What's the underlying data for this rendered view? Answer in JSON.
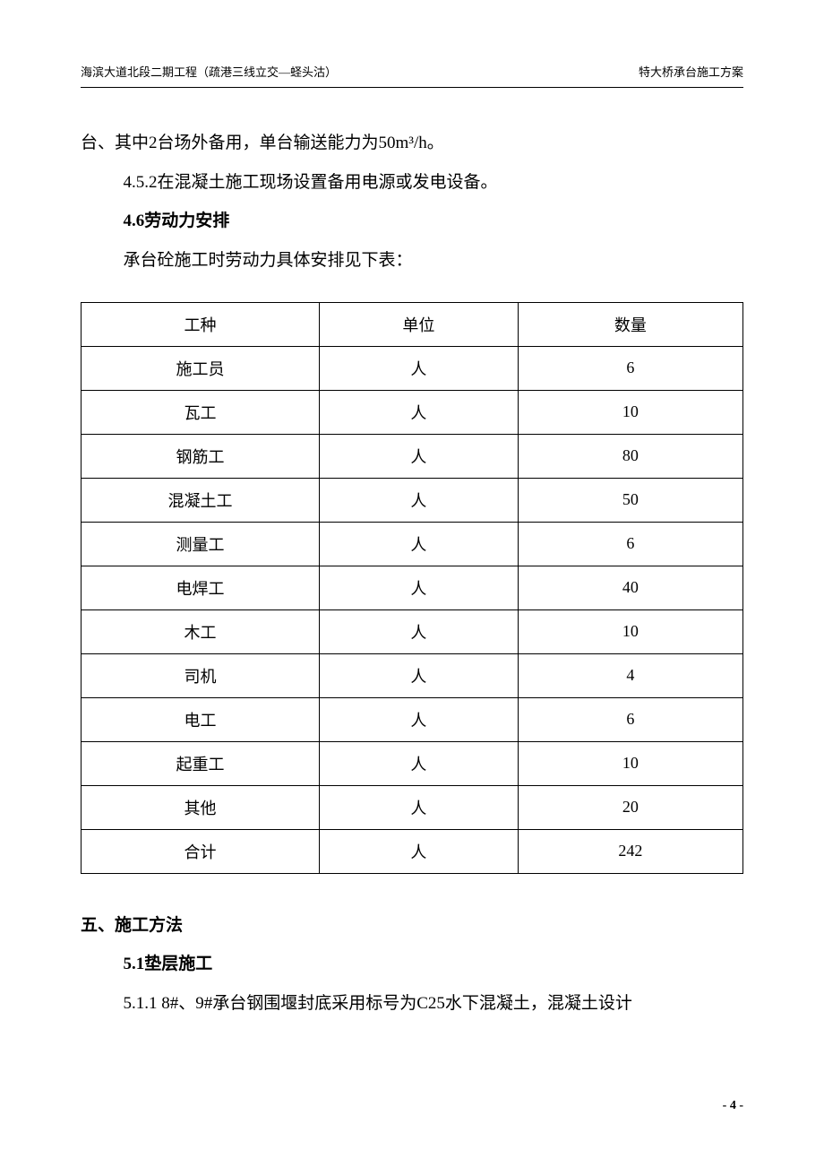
{
  "header": {
    "left": "海滨大道北段二期工程（疏港三线立交—蛏头沽）",
    "right": "特大桥承台施工方案"
  },
  "paragraphs": {
    "p1": "台、其中2台场外备用，单台输送能力为50m³/h。",
    "p2": "4.5.2在混凝土施工现场设置备用电源或发电设备。",
    "h1": "4.6劳动力安排",
    "p3": "承台砼施工时劳动力具体安排见下表：",
    "h2": "五、施工方法",
    "h3": "5.1垫层施工",
    "p4": "5.1.1  8#、9#承台钢围堰封底采用标号为C25水下混凝土，混凝土设计"
  },
  "table": {
    "headers": [
      "工种",
      "单位",
      "数量"
    ],
    "rows": [
      [
        "施工员",
        "人",
        "6"
      ],
      [
        "瓦工",
        "人",
        "10"
      ],
      [
        "钢筋工",
        "人",
        "80"
      ],
      [
        "混凝土工",
        "人",
        "50"
      ],
      [
        "测量工",
        "人",
        "6"
      ],
      [
        "电焊工",
        "人",
        "40"
      ],
      [
        "木工",
        "人",
        "10"
      ],
      [
        "司机",
        "人",
        "4"
      ],
      [
        "电工",
        "人",
        "6"
      ],
      [
        "起重工",
        "人",
        "10"
      ],
      [
        "其他",
        "人",
        "20"
      ],
      [
        "合计",
        "人",
        "242"
      ]
    ],
    "col_widths": [
      "36%",
      "30%",
      "34%"
    ]
  },
  "footer": {
    "page": "- 4 -"
  }
}
